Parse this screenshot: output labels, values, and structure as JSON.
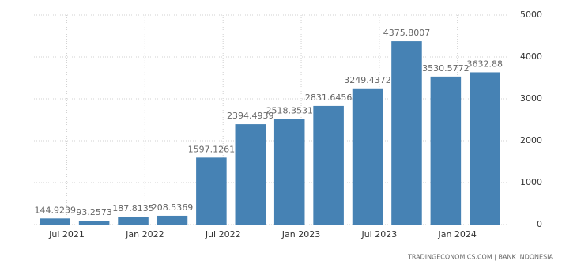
{
  "chart_data": {
    "type": "bar",
    "categories": [
      "Jul 2021",
      null,
      "Jan 2022",
      null,
      "Jul 2022",
      null,
      "Jan 2023",
      null,
      "Jul 2023",
      null,
      "Jan 2024",
      null
    ],
    "values": [
      144.9239,
      93.2573,
      187.8135,
      208.5369,
      1597.1261,
      2394.4939,
      2518.3531,
      2831.6456,
      3249.4372,
      4375.8007,
      3530.5772,
      3632.88
    ],
    "color": "#4682b4",
    "ylim": [
      0,
      5000
    ],
    "yticks": [
      0,
      1000,
      2000,
      3000,
      4000,
      5000
    ],
    "grid": true,
    "source": "TRADINGECONOMICS.COM | BANK INDONESIA"
  }
}
